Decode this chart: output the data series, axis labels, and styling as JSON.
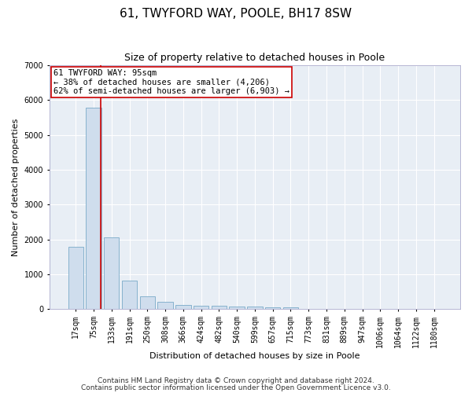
{
  "title": "61, TWYFORD WAY, POOLE, BH17 8SW",
  "subtitle": "Size of property relative to detached houses in Poole",
  "xlabel": "Distribution of detached houses by size in Poole",
  "ylabel": "Number of detached properties",
  "categories": [
    "17sqm",
    "75sqm",
    "133sqm",
    "191sqm",
    "250sqm",
    "308sqm",
    "366sqm",
    "424sqm",
    "482sqm",
    "540sqm",
    "599sqm",
    "657sqm",
    "715sqm",
    "773sqm",
    "831sqm",
    "889sqm",
    "947sqm",
    "1006sqm",
    "1064sqm",
    "1122sqm",
    "1180sqm"
  ],
  "bar_heights": [
    1780,
    5780,
    2060,
    810,
    360,
    200,
    115,
    100,
    95,
    80,
    65,
    50,
    40,
    0,
    0,
    0,
    0,
    0,
    0,
    0,
    0
  ],
  "bar_color": "#cfdded",
  "bar_edge_color": "#7aaac8",
  "vline_color": "#cc0000",
  "vline_x": 1.38,
  "annotation_text": "61 TWYFORD WAY: 95sqm\n← 38% of detached houses are smaller (4,206)\n62% of semi-detached houses are larger (6,903) →",
  "annotation_box_facecolor": "#ffffff",
  "annotation_box_edgecolor": "#cc0000",
  "ylim": [
    0,
    7000
  ],
  "yticks": [
    0,
    1000,
    2000,
    3000,
    4000,
    5000,
    6000,
    7000
  ],
  "plot_bg_color": "#e8eef5",
  "grid_color": "#ffffff",
  "footer1": "Contains HM Land Registry data © Crown copyright and database right 2024.",
  "footer2": "Contains public sector information licensed under the Open Government Licence v3.0.",
  "title_fontsize": 11,
  "subtitle_fontsize": 9,
  "axis_label_fontsize": 8,
  "tick_fontsize": 7,
  "annotation_fontsize": 7.5,
  "footer_fontsize": 6.5
}
